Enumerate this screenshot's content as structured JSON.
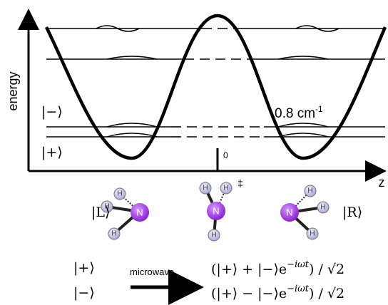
{
  "axes": {
    "y_label": "energy",
    "x_label": "z",
    "origin_label": "0"
  },
  "levels": {
    "minus": "|−⟩",
    "plus": "|+⟩",
    "splitting": {
      "text": "0.8 cm",
      "exponent": "-1"
    }
  },
  "molecules": [
    {
      "state": "|L⟩",
      "atoms": [
        "N",
        "H",
        "H",
        "H"
      ]
    },
    {
      "mark": "‡",
      "atoms": [
        "N",
        "H",
        "H",
        "H"
      ]
    },
    {
      "state": "|R⟩",
      "atoms": [
        "N",
        "H",
        "H",
        "H"
      ]
    }
  ],
  "transition": {
    "initial": [
      "|+⟩",
      "|−⟩"
    ],
    "label": "microwave",
    "final": [
      {
        "text": "(|+⟩ + |−⟩e",
        "exponent": "−iωt",
        "tail": ") / √2"
      },
      {
        "text": "(|+⟩ − |−⟩e",
        "exponent": "−iωt",
        "tail": ") / √2"
      }
    ]
  }
}
